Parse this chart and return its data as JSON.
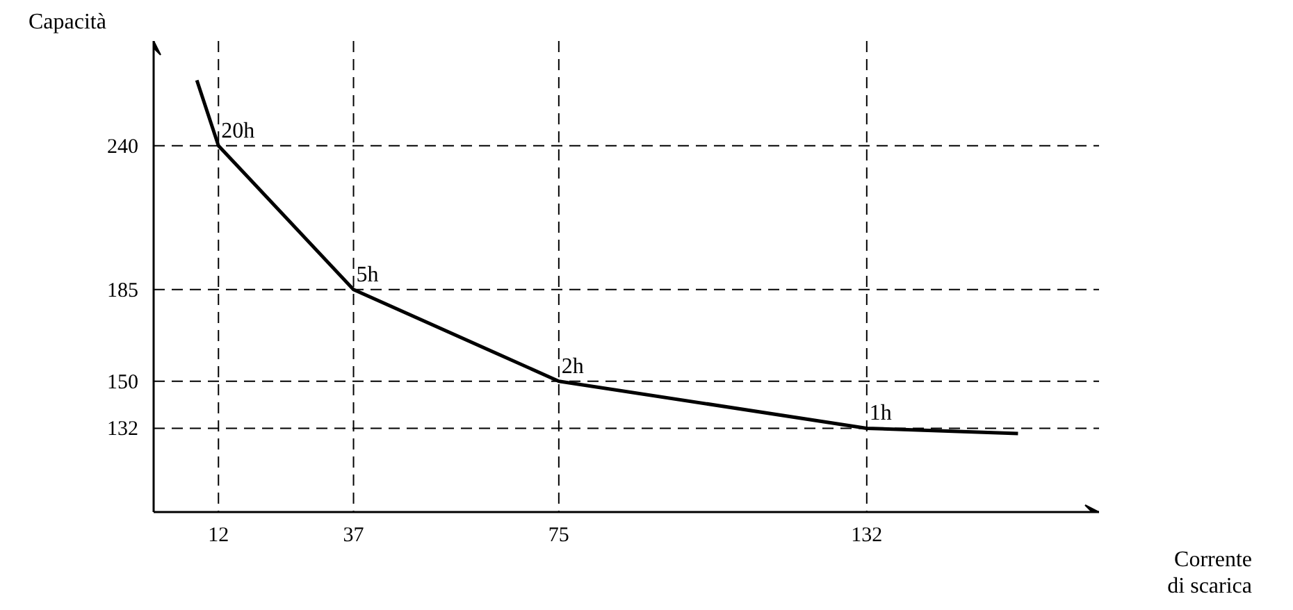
{
  "chart_data": {
    "type": "line",
    "xlabel": "Corrente di scarica",
    "ylabel": "Capacità",
    "x": [
      8,
      12,
      37,
      75,
      132,
      160
    ],
    "series": [
      {
        "color": "#000000",
        "values": [
          265,
          240,
          185,
          150,
          132,
          130
        ]
      }
    ],
    "xlim": [
      0,
      175
    ],
    "ylim": [
      100,
      280
    ],
    "xticks": [
      12,
      37,
      75,
      132
    ],
    "yticks": [
      132,
      150,
      185,
      240
    ],
    "ref_lines": [
      {
        "axis": "y",
        "value": 240,
        "line_style": "dashed"
      },
      {
        "axis": "y",
        "value": 185,
        "line_style": "dashed"
      },
      {
        "axis": "y",
        "value": 150,
        "line_style": "dashed"
      },
      {
        "axis": "y",
        "value": 132,
        "line_style": "dashed"
      },
      {
        "axis": "x",
        "value": 12,
        "line_style": "dashed"
      },
      {
        "axis": "x",
        "value": 37,
        "line_style": "dashed"
      },
      {
        "axis": "x",
        "value": 75,
        "line_style": "dashed"
      },
      {
        "axis": "x",
        "value": 132,
        "line_style": "dashed"
      }
    ],
    "annotations": [
      {
        "text": "20h",
        "x": 12,
        "y": 240
      },
      {
        "text": "5h",
        "x": 37,
        "y": 185
      },
      {
        "text": "2h",
        "x": 75,
        "y": 150
      },
      {
        "text": "1h",
        "x": 132,
        "y": 132
      }
    ],
    "grid": false,
    "marker": "none",
    "line_style": "solid"
  }
}
